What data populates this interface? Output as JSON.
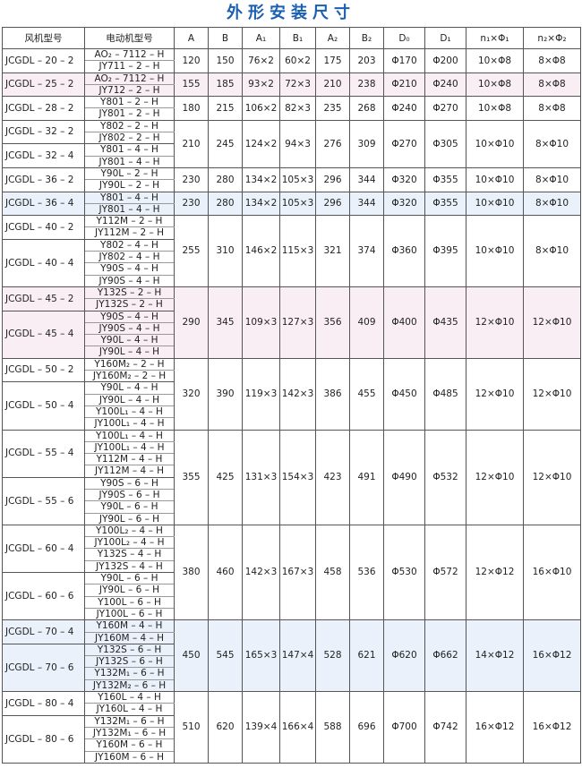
{
  "title": "外形安装尺寸",
  "header": {
    "columns": [
      "风机型号",
      "电动机型号",
      "A",
      "B",
      "A₁",
      "B₁",
      "A₂",
      "B₂",
      "D₀",
      "D₁",
      "n₁×Φ₁",
      "n₂×Φ₂"
    ]
  },
  "groups": [
    {
      "fans": [
        {
          "name": "JCGDL – 20 – 2",
          "motors": [
            "AO₂ – 7112 – H",
            "JY711 – 2 – H"
          ]
        }
      ],
      "dims": [
        "120",
        "150",
        "76×2",
        "60×2",
        "175",
        "203",
        "Φ170",
        "Φ200",
        "10×Φ8",
        "8×Φ8"
      ]
    },
    {
      "fans": [
        {
          "name": "JCGDL – 25 – 2",
          "motors": [
            "AO₂ – 7112 – H",
            "JY712 – 2 – H"
          ]
        }
      ],
      "dims": [
        "155",
        "185",
        "93×2",
        "72×3",
        "210",
        "238",
        "Φ210",
        "Φ240",
        "10×Φ8",
        "8×Φ8"
      ]
    },
    {
      "fans": [
        {
          "name": "JCGDL – 28 – 2",
          "motors": [
            "Y801 – 2 – H",
            "JY801 – 2 – H"
          ]
        }
      ],
      "dims": [
        "180",
        "215",
        "106×2",
        "82×3",
        "235",
        "268",
        "Φ240",
        "Φ270",
        "10×Φ8",
        "8×Φ8"
      ]
    },
    {
      "fans": [
        {
          "name": "JCGDL – 32 – 2",
          "motors": [
            "Y802 – 2 – H",
            "JY802 – 2 – H"
          ]
        },
        {
          "name": "JCGDL – 32 – 4",
          "motors": [
            "Y801 – 4 – H",
            "JY801 – 4 – H"
          ]
        }
      ],
      "dims": [
        "210",
        "245",
        "124×2",
        "94×3",
        "276",
        "309",
        "Φ270",
        "Φ305",
        "10×Φ10",
        "8×Φ10"
      ]
    },
    {
      "fans": [
        {
          "name": "JCGDL – 36 – 2",
          "motors": [
            "Y90L – 2 – H",
            "JY90L – 2 – H"
          ]
        }
      ],
      "dims": [
        "230",
        "280",
        "134×2",
        "105×3",
        "296",
        "344",
        "Φ320",
        "Φ355",
        "10×Φ10",
        "8×Φ10"
      ]
    },
    {
      "fans": [
        {
          "name": "JCGDL – 36 – 4",
          "motors": [
            "Y801 – 4 – H",
            "JY801 – 4 – H"
          ]
        }
      ],
      "dims": [
        "230",
        "280",
        "134×2",
        "105×3",
        "296",
        "344",
        "Φ320",
        "Φ355",
        "10×Φ10",
        "8×Φ10"
      ]
    },
    {
      "fans": [
        {
          "name": "JCGDL – 40 – 2",
          "motors": [
            "Y112M – 2 – H",
            "JY112M – 2 – H"
          ]
        },
        {
          "name": "JCGDL – 40 – 4",
          "motors": [
            "Y802 – 4 – H",
            "JY802 – 4 – H",
            "Y90S – 4 – H",
            "JY90S – 4 – H"
          ]
        }
      ],
      "dims": [
        "255",
        "310",
        "146×2",
        "115×3",
        "321",
        "374",
        "Φ360",
        "Φ395",
        "10×Φ10",
        "8×Φ10"
      ]
    },
    {
      "fans": [
        {
          "name": "JCGDL – 45 – 2",
          "motors": [
            "Y132S – 2 – H",
            "JY132S – 2 – H"
          ]
        },
        {
          "name": "JCGDL – 45 – 4",
          "motors": [
            "Y90S – 4 – H",
            "JY90S – 4 – H",
            "Y90L – 4 – H",
            "JY90L – 4 – H"
          ]
        }
      ],
      "dims": [
        "290",
        "345",
        "109×3",
        "127×3",
        "356",
        "409",
        "Φ400",
        "Φ435",
        "12×Φ10",
        "12×Φ10"
      ]
    },
    {
      "fans": [
        {
          "name": "JCGDL – 50 – 2",
          "motors": [
            "Y160M₂ – 2 – H",
            "JY160M₂ – 2 – H"
          ]
        },
        {
          "name": "JCGDL – 50 – 4",
          "motors": [
            "Y90L – 4 – H",
            "JY90L – 4 – H",
            "Y100L₁ – 4 – H",
            "JY100L₁ – 4 – H"
          ]
        }
      ],
      "dims": [
        "320",
        "390",
        "119×3",
        "142×3",
        "386",
        "455",
        "Φ450",
        "Φ485",
        "12×Φ10",
        "12×Φ10"
      ]
    },
    {
      "fans": [
        {
          "name": "JCGDL – 55 – 4",
          "motors": [
            "Y100L₁ – 4 – H",
            "JY100L₁ – 4 – H",
            "Y112M – 4 – H",
            "JY112M – 4 – H"
          ]
        },
        {
          "name": "JCGDL – 55 – 6",
          "motors": [
            "Y90S – 6 – H",
            "JY90S – 6 – H",
            "Y90L – 6 – H",
            "JY90L – 6 – H"
          ]
        }
      ],
      "dims": [
        "355",
        "425",
        "131×3",
        "154×3",
        "423",
        "491",
        "Φ490",
        "Φ532",
        "12×Φ10",
        "12×Φ10"
      ]
    },
    {
      "fans": [
        {
          "name": "JCGDL – 60 – 4",
          "motors": [
            "Y100L₂ – 4 – H",
            "JY100L₂ – 4 – H",
            "Y132S – 4 – H",
            "JY132S – 4 – H"
          ]
        },
        {
          "name": "JCGDL – 60 – 6",
          "motors": [
            "Y90L – 6 – H",
            "JY90L – 6 – H",
            "Y100L – 6 – H",
            "JY100L – 6 – H"
          ]
        }
      ],
      "dims": [
        "380",
        "460",
        "142×3",
        "167×3",
        "458",
        "536",
        "Φ530",
        "Φ572",
        "12×Φ12",
        "16×Φ10"
      ]
    },
    {
      "fans": [
        {
          "name": "JCGDL – 70 – 4",
          "motors": [
            "Y160M – 4 – H",
            "JY160M – 4 – H"
          ]
        },
        {
          "name": "JCGDL – 70 – 6",
          "motors": [
            "Y132S – 6 – H",
            "JY132S – 6 – H",
            "Y132M₁ – 6 – H",
            "JY132M₂ – 6 – H"
          ]
        }
      ],
      "dims": [
        "450",
        "545",
        "165×3",
        "147×4",
        "528",
        "621",
        "Φ620",
        "Φ662",
        "14×Φ12",
        "16×Φ12"
      ]
    },
    {
      "fans": [
        {
          "name": "JCGDL – 80 – 4",
          "motors": [
            "Y160L – 4 – H",
            "JY160L – 4 – H"
          ]
        },
        {
          "name": "JCGDL – 80 – 6",
          "motors": [
            "Y132M₁ – 6 – H",
            "JY132M₁ – 6 – H",
            "Y160M – 6 – H",
            "JY160M – 6 – H"
          ]
        }
      ],
      "dims": [
        "510",
        "620",
        "139×4",
        "166×4",
        "588",
        "696",
        "Φ700",
        "Φ742",
        "16×Φ12",
        "16×Φ12"
      ]
    }
  ]
}
